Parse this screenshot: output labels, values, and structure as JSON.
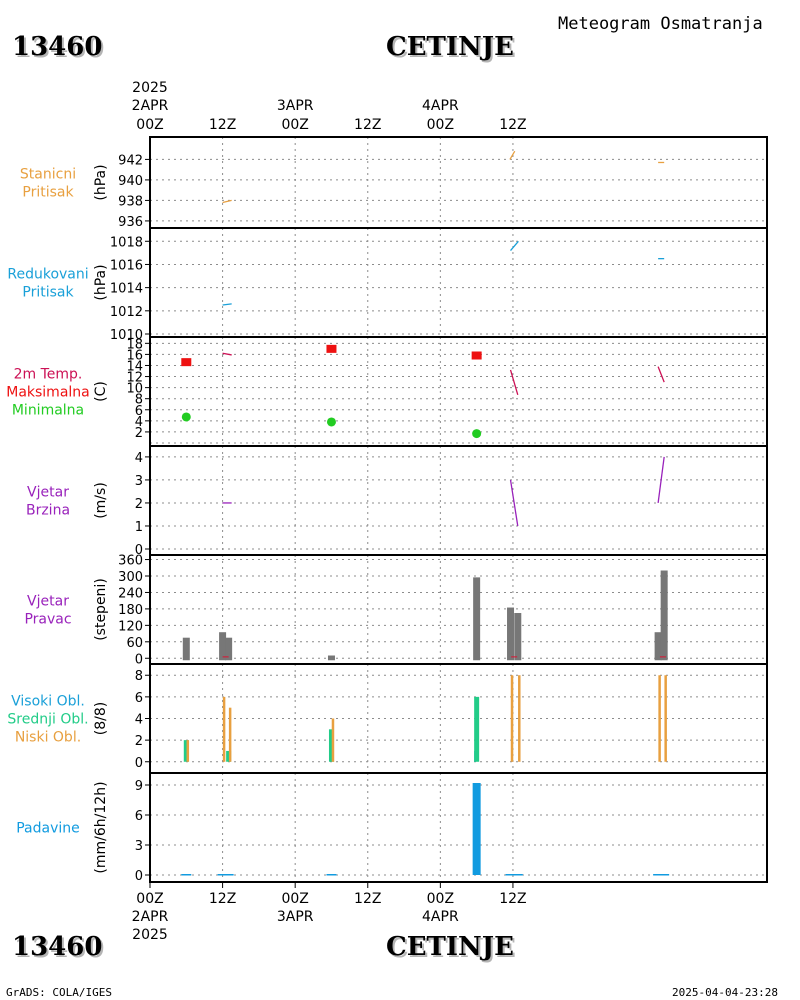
{
  "header": {
    "station_id": "13460",
    "station_name": "CETINJE",
    "chart_title": "Meteogram Osmatranja"
  },
  "footer": {
    "credit": "GrADS: COLA/IGES",
    "timestamp": "2025-04-04-23:28"
  },
  "colors": {
    "pressure": "#e8a040",
    "reduced": "#1aa0d8",
    "tmax": "#ee1111",
    "tmin": "#22cc22",
    "temp": "#cc1155",
    "wind": "#9922bb",
    "dir_bar": "#777777",
    "dir_tick": "#e01030",
    "high_cloud": "#1aa0d8",
    "mid_cloud": "#22cc88",
    "low_cloud": "#e8a040",
    "precip": "#119be0",
    "grid": "#8c8c8c"
  },
  "chart_data": [
    {
      "type": "line",
      "panel": "stanicni_pritisak",
      "labels": [
        "Stanicni",
        "Pritisak"
      ],
      "label_colors": [
        "pressure",
        "pressure"
      ],
      "ylabel": "(hPa)",
      "yticks": [
        936,
        938,
        940,
        942
      ],
      "ylim": [
        935.7,
        943.6
      ],
      "grid_y": [
        936,
        938,
        940,
        942
      ],
      "segments": [
        {
          "x": [
            -12,
            -10.5
          ],
          "y": [
            937.8,
            938.0
          ],
          "color": "pressure"
        },
        {
          "x": [
            35.5,
            36.3
          ],
          "y": [
            942.0,
            942.8
          ],
          "color": "pressure"
        },
        {
          "x": [
            60,
            61
          ],
          "y": [
            941.7,
            941.7
          ],
          "color": "pressure"
        }
      ]
    },
    {
      "type": "line",
      "panel": "redukovani_pritisak",
      "labels": [
        "Redukovani",
        "Pritisak"
      ],
      "label_colors": [
        "reduced",
        "reduced"
      ],
      "ylabel": "(hPa)",
      "yticks": [
        1010,
        1012,
        1014,
        1016,
        1018
      ],
      "ylim": [
        1010.0,
        1018.8
      ],
      "grid_y": [
        1010,
        1012,
        1014,
        1016,
        1018
      ],
      "segments": [
        {
          "x": [
            -12,
            -10.5
          ],
          "y": [
            1012.5,
            1012.6
          ],
          "color": "reduced"
        },
        {
          "x": [
            35.6,
            36.9
          ],
          "y": [
            1017.2,
            1018.0
          ],
          "color": "reduced"
        },
        {
          "x": [
            60,
            61
          ],
          "y": [
            1016.5,
            1016.5
          ],
          "color": "reduced"
        }
      ]
    },
    {
      "type": "line",
      "panel": "temperatura_2m",
      "labels": [
        "2m Temp.",
        "Maksimalna",
        "Minimalna"
      ],
      "label_colors": [
        "temp",
        "tmax",
        "tmin"
      ],
      "ylabel": "(C)",
      "yticks": [
        2,
        4,
        6,
        8,
        10,
        12,
        14,
        16,
        18
      ],
      "ylim": [
        0,
        18.6
      ],
      "grid_y": [
        0,
        2,
        4,
        6,
        8,
        10,
        12,
        14,
        16,
        18
      ],
      "segments": [
        {
          "x": [
            -12,
            -10.5
          ],
          "y": [
            16.2,
            15.9
          ],
          "color": "temp"
        },
        {
          "x": [
            35.6,
            36.8
          ],
          "y": [
            13.2,
            8.7
          ],
          "color": "temp"
        },
        {
          "x": [
            60,
            61
          ],
          "y": [
            13.8,
            11.0
          ],
          "color": "temp"
        }
      ],
      "tmax_points": [
        {
          "x": -18,
          "y": 14.6
        },
        {
          "x": 6,
          "y": 17.0
        },
        {
          "x": 30,
          "y": 15.8
        }
      ],
      "tmin_points": [
        {
          "x": -18,
          "y": 4.7
        },
        {
          "x": 6,
          "y": 3.8
        },
        {
          "x": 30,
          "y": 1.7
        }
      ]
    },
    {
      "type": "line",
      "panel": "vjetar_brzina",
      "labels": [
        "Vjetar",
        "Brzina"
      ],
      "label_colors": [
        "wind",
        "wind"
      ],
      "ylabel": "(m/s)",
      "yticks": [
        0,
        1,
        2,
        3,
        4
      ],
      "ylim": [
        0,
        4.3
      ],
      "grid_y": [
        0,
        1,
        2,
        3,
        4
      ],
      "segments": [
        {
          "x": [
            -12,
            -10.5
          ],
          "y": [
            2.0,
            2.0
          ],
          "color": "wind"
        },
        {
          "x": [
            35.6,
            36.8
          ],
          "y": [
            3.0,
            1.0
          ],
          "color": "wind"
        },
        {
          "x": [
            60,
            61
          ],
          "y": [
            2.0,
            4.0
          ],
          "color": "wind"
        }
      ]
    },
    {
      "type": "bar",
      "panel": "vjetar_pravac",
      "labels": [
        "Vjetar",
        "Pravac"
      ],
      "label_colors": [
        "wind",
        "wind"
      ],
      "ylabel": "(stepeni)",
      "yticks": [
        0,
        60,
        120,
        180,
        240,
        300,
        360
      ],
      "ylim": [
        -10,
        362
      ],
      "grid_y": [
        0,
        60,
        120,
        180,
        240,
        300,
        360
      ],
      "bars": [
        {
          "x": -18,
          "y": 75
        },
        {
          "x": -12,
          "y": 95
        },
        {
          "x": -11,
          "y": 75
        },
        {
          "x": 6,
          "y": 10
        },
        {
          "x": 35.6,
          "y": 185
        },
        {
          "x": 36.8,
          "y": 165
        },
        {
          "x": 30,
          "y": 295
        },
        {
          "x": 60,
          "y": 95
        },
        {
          "x": 61,
          "y": 320
        }
      ],
      "ticks": [
        {
          "x": -11.5,
          "y": 5
        },
        {
          "x": 36.2,
          "y": 5
        },
        {
          "x": 60.8,
          "y": 5
        }
      ]
    },
    {
      "type": "bar",
      "panel": "oblacnost",
      "labels": [
        "Visoki Obl.",
        "Srednji Obl.",
        "Niski Obl."
      ],
      "label_colors": [
        "high_cloud",
        "mid_cloud",
        "low_cloud"
      ],
      "ylabel": "(8/8)",
      "yticks": [
        0,
        2,
        4,
        6,
        8
      ],
      "ylim": [
        -0.3,
        8.3
      ],
      "grid_y": [
        0,
        2,
        4,
        6,
        8
      ],
      "series": [
        {
          "name": "Visoki Obl.",
          "color": "high_cloud",
          "points": [
            {
              "x": 30,
              "y": 1
            }
          ]
        },
        {
          "name": "Srednji Obl.",
          "color": "mid_cloud",
          "points": [
            {
              "x": -18,
              "y": 2
            },
            {
              "x": -11,
              "y": 1
            },
            {
              "x": 6,
              "y": 3
            },
            {
              "x": 30,
              "y": 6
            }
          ]
        },
        {
          "name": "Niski Obl.",
          "color": "low_cloud",
          "points": [
            {
              "x": -18,
              "y": 2
            },
            {
              "x": -12,
              "y": 6
            },
            {
              "x": -11,
              "y": 5
            },
            {
              "x": 6,
              "y": 4
            },
            {
              "x": 35.6,
              "y": 8
            },
            {
              "x": 36.8,
              "y": 8
            },
            {
              "x": 60,
              "y": 8
            },
            {
              "x": 61,
              "y": 8
            }
          ]
        }
      ]
    },
    {
      "type": "bar",
      "panel": "padavine",
      "labels": [
        "Padavine"
      ],
      "label_colors": [
        "precip"
      ],
      "ylabel": "(mm/6h/12h)",
      "yticks": [
        0,
        3,
        6,
        9
      ],
      "ylim": [
        -0.4,
        9.6
      ],
      "grid_y": [
        0,
        3,
        6,
        9
      ],
      "bars": [
        {
          "x": -18,
          "y": 0.1
        },
        {
          "x": -12,
          "y": 0.1
        },
        {
          "x": -11,
          "y": 0.1
        },
        {
          "x": 6,
          "y": 0.1
        },
        {
          "x": 35.6,
          "y": 0.1
        },
        {
          "x": 36.8,
          "y": 0.1
        },
        {
          "x": 30,
          "y": 9.2
        },
        {
          "x": 60,
          "y": 0.1
        },
        {
          "x": 61,
          "y": 0.1
        }
      ]
    }
  ],
  "time_axis": {
    "year": "2025",
    "range_hours": [
      -24,
      78
    ],
    "ticks": [
      {
        "hour": -24,
        "label": "00Z",
        "date": "2APR"
      },
      {
        "hour": -12,
        "label": "12Z",
        "date": ""
      },
      {
        "hour": 0,
        "label": "00Z",
        "date": "3APR"
      },
      {
        "hour": 12,
        "label": "12Z",
        "date": ""
      },
      {
        "hour": 24,
        "label": "00Z",
        "date": "4APR"
      },
      {
        "hour": 36,
        "label": "12Z",
        "date": ""
      }
    ]
  }
}
